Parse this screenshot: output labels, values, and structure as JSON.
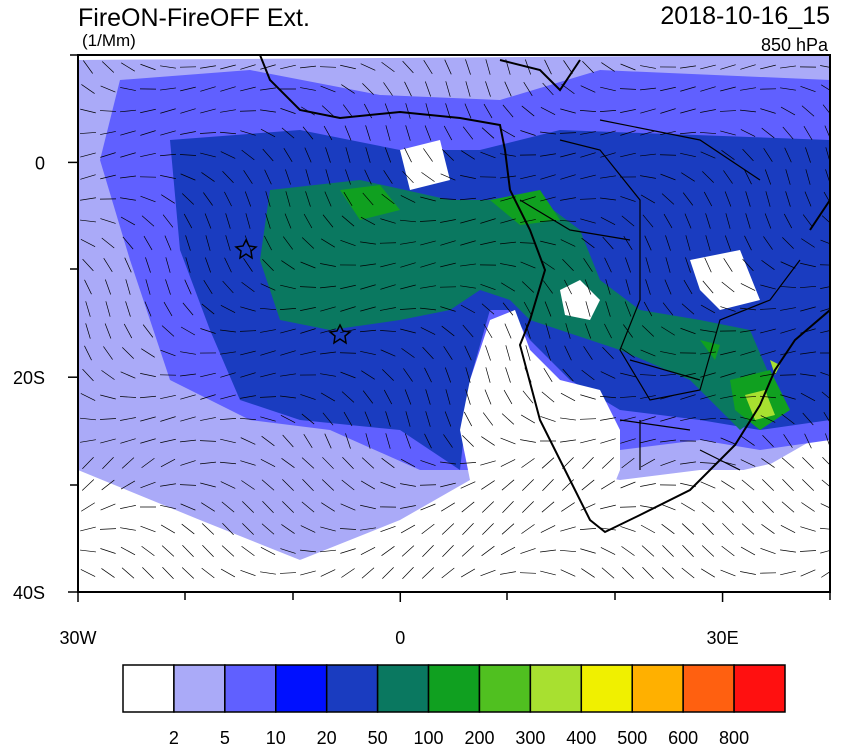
{
  "map": {
    "title": "FireON-FireOFF Ext.",
    "units": "(1/Mm)",
    "date": "2018-10-16_15",
    "level": "850 hPa",
    "lon_range": [
      -30,
      40
    ],
    "lat_range": [
      -40,
      10
    ],
    "lon_ticks": [
      {
        "value": -30,
        "label": "30W"
      },
      {
        "value": 0,
        "label": "0"
      },
      {
        "value": 30,
        "label": "30E"
      }
    ],
    "lat_ticks": [
      {
        "value": 0,
        "label": "0"
      },
      {
        "value": -20,
        "label": "20S"
      },
      {
        "value": -40,
        "label": "40S"
      }
    ],
    "colorbar": {
      "colors": [
        "#ffffff",
        "#aaaaf8",
        "#6060ff",
        "#0010ff",
        "#1a3cc0",
        "#0a7860",
        "#10a020",
        "#50c020",
        "#a8e030",
        "#f0f000",
        "#ffb000",
        "#ff6010",
        "#ff1010"
      ],
      "levels": [
        2,
        5,
        10,
        20,
        50,
        100,
        200,
        300,
        400,
        500,
        600,
        800
      ]
    }
  }
}
